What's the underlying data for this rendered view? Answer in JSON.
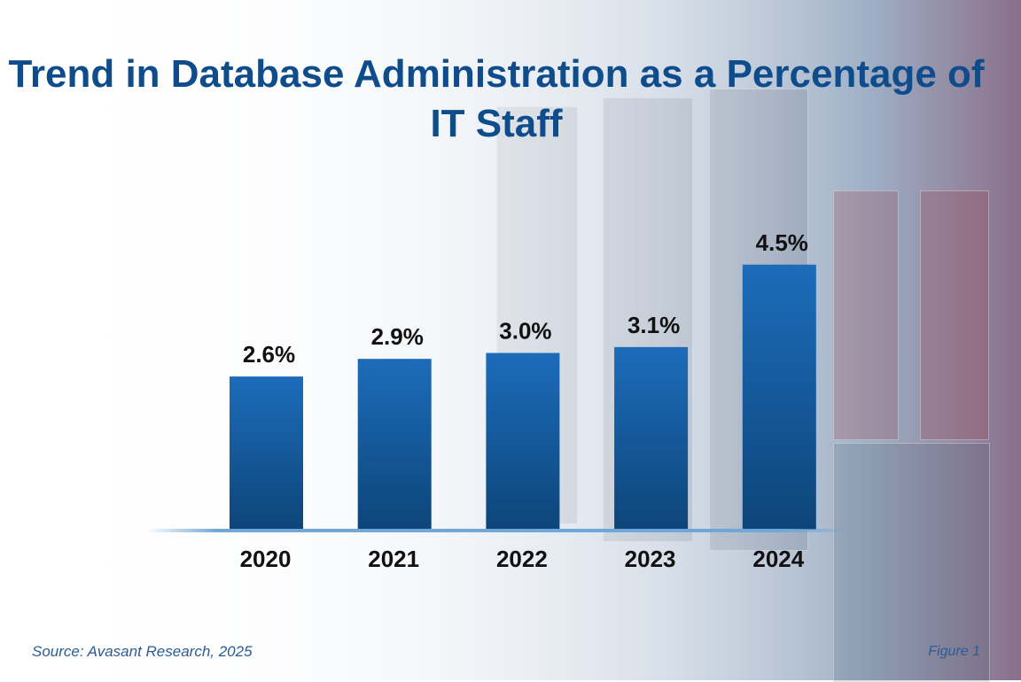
{
  "chart_data": {
    "type": "bar",
    "title": "Trend in Database Administration as a Percentage of IT Staff",
    "categories": [
      "2020",
      "2021",
      "2022",
      "2023",
      "2024"
    ],
    "values": [
      2.6,
      2.9,
      3.0,
      3.1,
      4.5
    ],
    "data_labels": [
      "2.6%",
      "2.9%",
      "3.0%",
      "3.1%",
      "4.5%"
    ],
    "xlabel": "",
    "ylabel": "",
    "ylim": [
      0,
      5
    ],
    "grid": false,
    "colors": {
      "bar_top": "#1c6cba",
      "bar_bottom": "#0d4579",
      "baseline": "#6fa8d8",
      "title": "#0f4c8c"
    }
  },
  "footer": {
    "source": "Source: Avasant Research, 2025",
    "figure": "Figure 1"
  }
}
